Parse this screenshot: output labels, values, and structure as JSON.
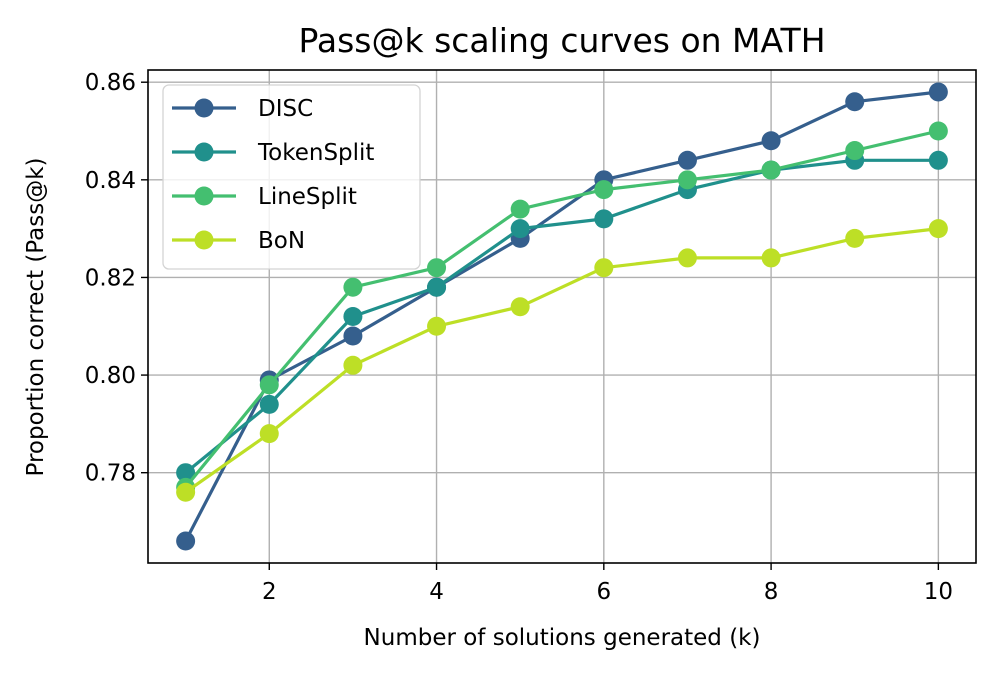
{
  "chart_data": {
    "type": "line",
    "title": "Pass@k scaling curves on MATH",
    "xlabel": "Number of solutions generated (k)",
    "ylabel": "Proportion correct (Pass@k)",
    "x": [
      1,
      2,
      3,
      4,
      5,
      6,
      7,
      8,
      9,
      10
    ],
    "xlim": [
      0.55,
      10.45
    ],
    "ylim": [
      0.7615,
      0.8625
    ],
    "xticks": [
      2,
      4,
      6,
      8,
      10
    ],
    "xtick_labels": [
      "2",
      "4",
      "6",
      "8",
      "10"
    ],
    "yticks": [
      0.78,
      0.8,
      0.82,
      0.84,
      0.86
    ],
    "ytick_labels": [
      "0.78",
      "0.80",
      "0.82",
      "0.84",
      "0.86"
    ],
    "grid": true,
    "legend_position": "top-left",
    "series": [
      {
        "name": "DISC",
        "color": "#355f8d",
        "values": [
          0.766,
          0.799,
          0.808,
          0.818,
          0.828,
          0.84,
          0.844,
          0.848,
          0.856,
          0.858
        ]
      },
      {
        "name": "TokenSplit",
        "color": "#20908c",
        "values": [
          0.78,
          0.794,
          0.812,
          0.818,
          0.83,
          0.832,
          0.838,
          0.842,
          0.844,
          0.844
        ]
      },
      {
        "name": "LineSplit",
        "color": "#44bf70",
        "values": [
          0.777,
          0.798,
          0.818,
          0.822,
          0.834,
          0.838,
          0.84,
          0.842,
          0.846,
          0.85
        ]
      },
      {
        "name": "BoN",
        "color": "#bddf26",
        "values": [
          0.776,
          0.788,
          0.802,
          0.81,
          0.814,
          0.822,
          0.824,
          0.824,
          0.828,
          0.83
        ]
      }
    ]
  }
}
